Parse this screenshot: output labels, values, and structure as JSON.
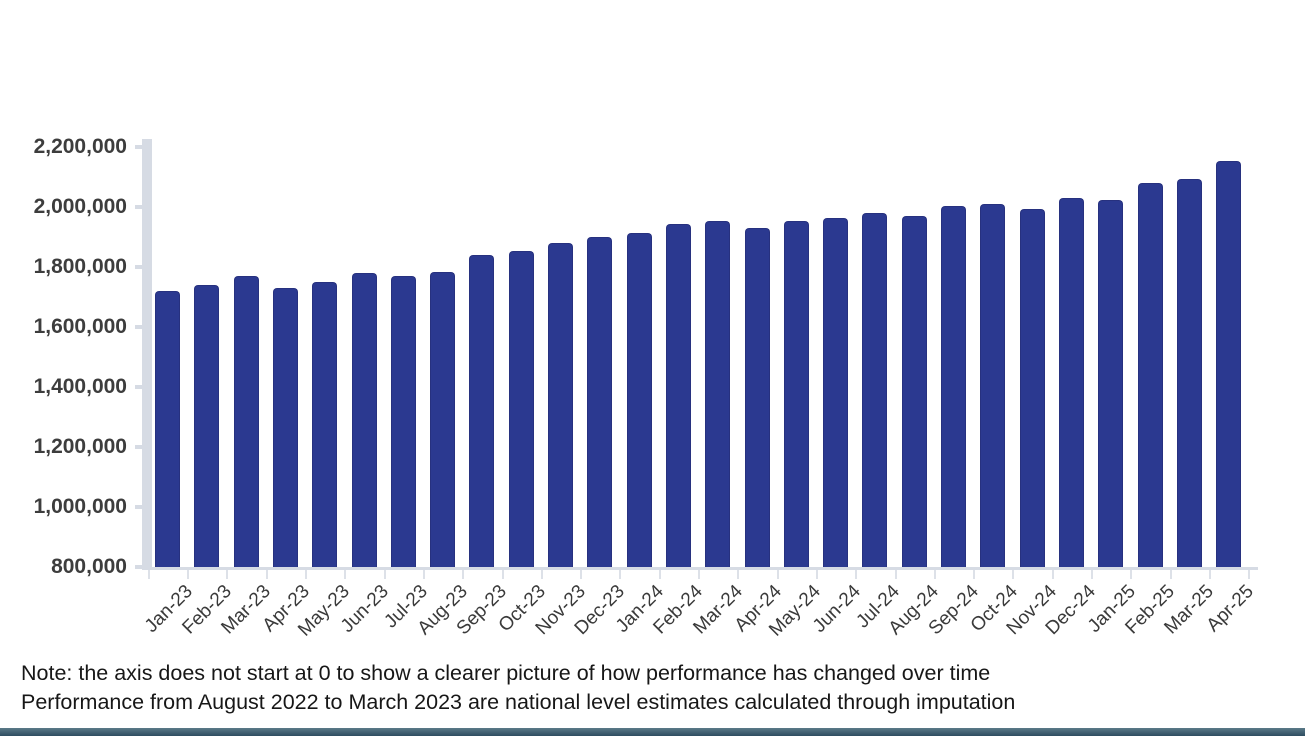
{
  "note": {
    "line1": "Note: the axis does not start at 0 to show a clearer picture of how performance has changed over time",
    "line2": "Performance from August 2022 to March 2023 are national level estimates calculated through imputation"
  },
  "colors": {
    "bar_fill": "#2b3990",
    "bar_border": "#27317f",
    "axis_line": "#d6dbe4",
    "footer_strip": "#2e4d61",
    "label_text": "#3d3d3d"
  },
  "chart_data": {
    "type": "bar",
    "title": "",
    "xlabel": "",
    "ylabel": "",
    "ylim": [
      800000,
      2200000
    ],
    "y_tick_step": 200000,
    "y_tick_labels": [
      "2,200,000",
      "2,000,000",
      "1,800,000",
      "1,600,000",
      "1,400,000",
      "1,200,000",
      "1,000,000",
      "800,000"
    ],
    "grid": false,
    "legend": "none",
    "categories": [
      "Jan-23",
      "Feb-23",
      "Mar-23",
      "Apr-23",
      "May-23",
      "Jun-23",
      "Jul-23",
      "Aug-23",
      "Sep-23",
      "Oct-23",
      "Nov-23",
      "Dec-23",
      "Jan-24",
      "Feb-24",
      "Mar-24",
      "Apr-24",
      "May-24",
      "Jun-24",
      "Jul-24",
      "Aug-24",
      "Sep-24",
      "Oct-24",
      "Nov-24",
      "Dec-24",
      "Jan-25",
      "Feb-25",
      "Mar-25",
      "Apr-25"
    ],
    "values": [
      1720000,
      1740000,
      1770000,
      1730000,
      1750000,
      1780000,
      1770000,
      1785000,
      1840000,
      1855000,
      1880000,
      1900000,
      1915000,
      1945000,
      1955000,
      1930000,
      1955000,
      1965000,
      1980000,
      1970000,
      2005000,
      2010000,
      1995000,
      2030000,
      2025000,
      2080000,
      2095000,
      2155000
    ]
  }
}
